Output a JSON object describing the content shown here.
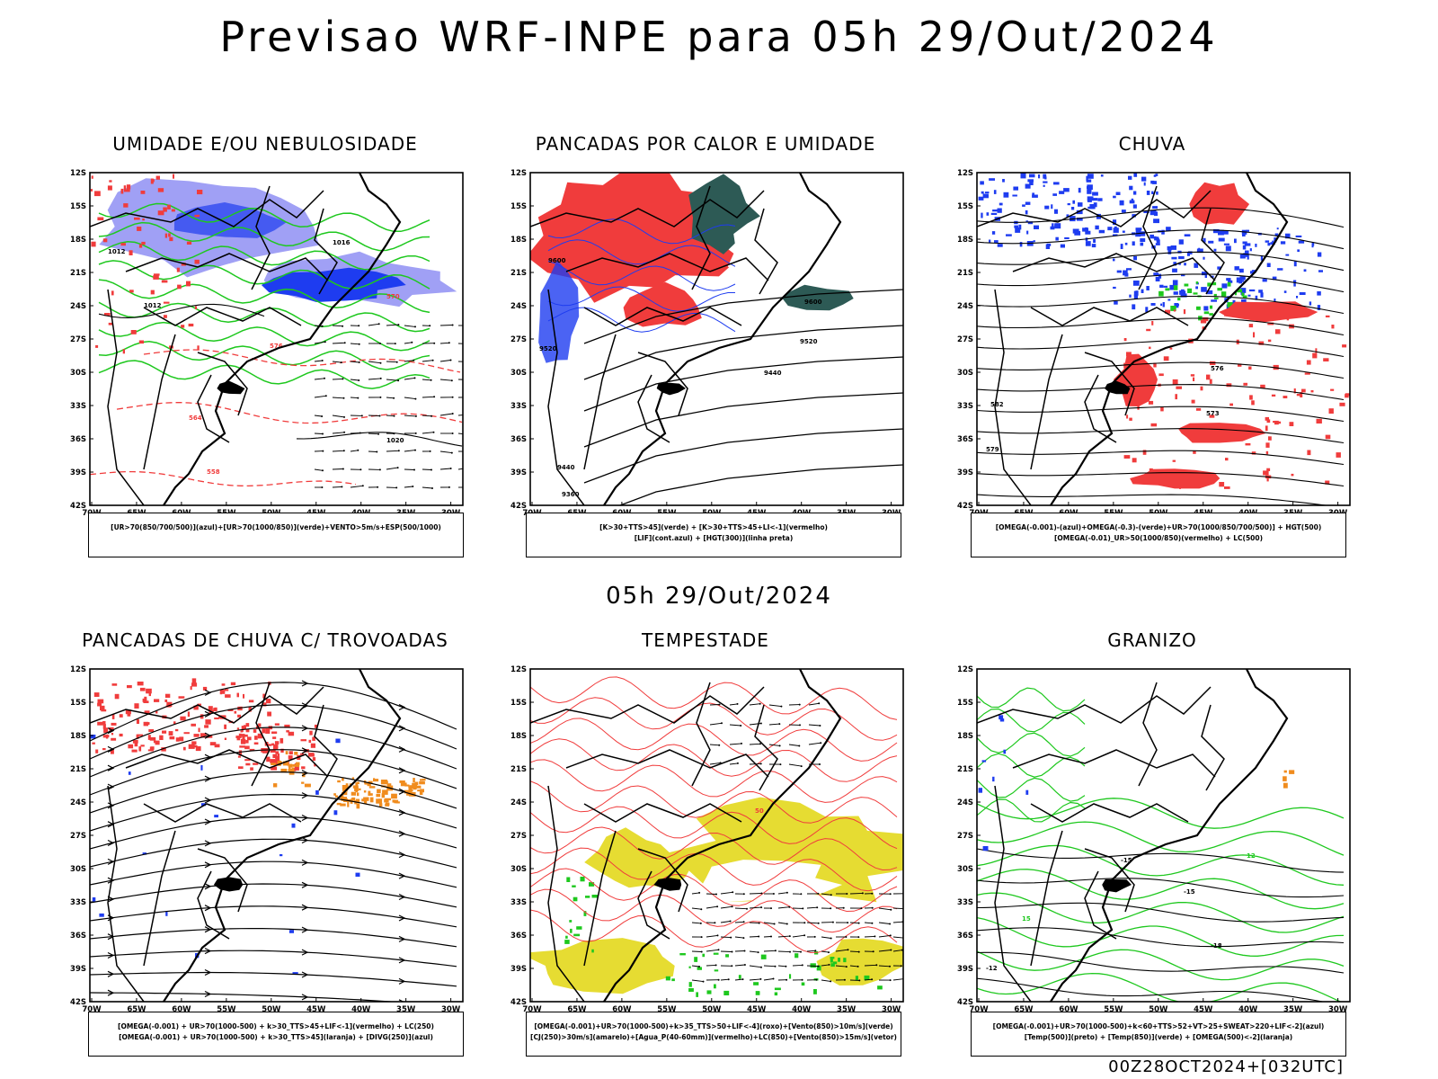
{
  "title": "Previsao WRF-INPE  para 05h 29/Out/2024",
  "middle_time": "05h 29/Out/2024",
  "footer": "00Z28OCT2024+[032UTC]",
  "axes": {
    "lat_labels": [
      "12S",
      "15S",
      "18S",
      "21S",
      "24S",
      "27S",
      "30S",
      "33S",
      "36S",
      "39S",
      "42S"
    ],
    "lon_labels": [
      "70W",
      "65W",
      "60W",
      "55W",
      "50W",
      "45W",
      "40W",
      "35W",
      "30W"
    ]
  },
  "panels": [
    {
      "title": "UMIDADE E/OU NEBULOSIDADE",
      "legend": [
        "[UR>70(850/700/500)](azul)+[UR>70(1000/850)](verde)+VENTO>5m/s+ESP(500/1000)"
      ],
      "contour_labels": [
        "1012",
        "1016",
        "1020",
        "576",
        "570",
        "564",
        "558"
      ]
    },
    {
      "title": "PANCADAS POR CALOR E UMIDADE",
      "legend": [
        "[K>30+TTS>45](verde) + [K>30+TTS>45+LI<-1](vermelho)",
        "[LIF](cont.azul) + [HGT(300)](linha preta)"
      ],
      "contour_labels": [
        "9600",
        "9520",
        "9440",
        "9360"
      ]
    },
    {
      "title": "CHUVA",
      "legend": [
        "[OMEGA(-0.001)-(azul)+OMEGA(-0.3)-(verde)+UR>70(1000/850/700/500)] + HGT(500)",
        "[OMEGA(-0.01)_UR>50(1000/850)(vermelho) + LC(500)"
      ],
      "contour_labels": [
        "573",
        "576",
        "579",
        "582"
      ]
    },
    {
      "title": "PANCADAS DE CHUVA C/ TROVOADAS",
      "legend": [
        "[OMEGA(-0.001) + UR>70(1000-500) + k>30_TTS>45+LIF<-1](vermelho) + LC(250)",
        "[OMEGA(-0.001) + UR>70(1000-500) + k>30_TTS>45](laranja) + [DIVG(250)](azul)"
      ],
      "contour_labels": []
    },
    {
      "title": "TEMPESTADE",
      "legend": [
        "[OMEGA(-0.001)+UR>70(1000-500)+k>35_TTS>50+LIF<-4](roxo)+[Vento(850)>10m/s](verde)",
        "[CJ(250)>30m/s](amarelo)+[Agua_P(40-60mm)](vermelho)+LC(850)+[Vento(850)>15m/s](vetor)"
      ],
      "contour_labels": [
        "50"
      ]
    },
    {
      "title": "GRANIZO",
      "legend": [
        "[OMEGA(-0.001)+UR>70(1000-500)+k<60+TTS>52+VT>25+SWEAT>220+LIF<-2](azul)",
        "[Temp(500)](preto) + [Temp(850)](verde) + [OMEGA(500)<-2](laranja)"
      ],
      "contour_labels": [
        "-12",
        "-15",
        "-18",
        "15",
        "12"
      ]
    }
  ],
  "colors": {
    "red": "#f03c3c",
    "green": "#1ec81e",
    "blue": "#1e3cf0",
    "lightblue": "#a0a0f5",
    "darkteal": "#2d5a55",
    "yellow": "#e6dc32",
    "orange": "#f08c1e"
  }
}
